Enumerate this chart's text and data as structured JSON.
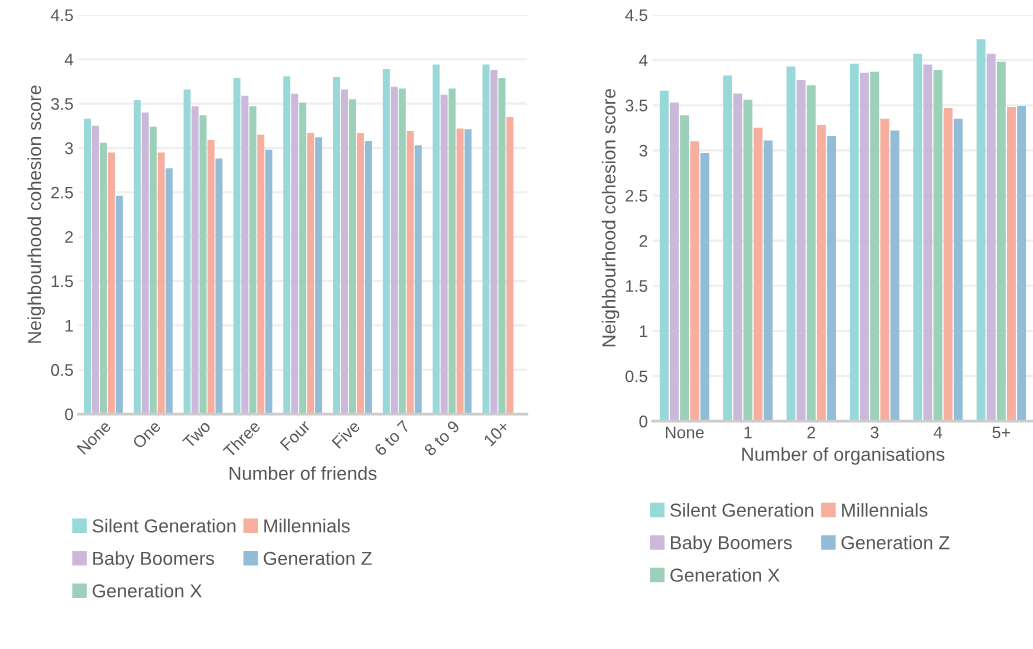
{
  "chart_data": [
    {
      "type": "bar",
      "xlabel": "Number of friends",
      "ylabel": "Neighbourhood cohesion score",
      "categories": [
        "None",
        "One",
        "Two",
        "Three",
        "Four",
        "Five",
        "6 to 7",
        "8 to 9",
        "10+"
      ],
      "ylim": [
        0,
        4.5
      ],
      "yticks": [
        0,
        0.5,
        1,
        1.5,
        2,
        2.5,
        3,
        3.5,
        4,
        4.5
      ],
      "grid": "y",
      "legend": "bottom",
      "series": [
        {
          "name": "Silent Generation",
          "color": "#99d8d8",
          "values": [
            3.33,
            3.54,
            3.66,
            3.79,
            3.81,
            3.8,
            3.89,
            3.94,
            3.94
          ]
        },
        {
          "name": "Baby Boomers",
          "color": "#cbb9dc",
          "values": [
            3.25,
            3.4,
            3.47,
            3.59,
            3.61,
            3.66,
            3.69,
            3.6,
            3.88
          ]
        },
        {
          "name": "Generation X",
          "color": "#9dd0b8",
          "values": [
            3.06,
            3.24,
            3.37,
            3.47,
            3.51,
            3.55,
            3.67,
            3.67,
            3.79
          ]
        },
        {
          "name": "Millennials",
          "color": "#f7ae9f",
          "values": [
            2.95,
            2.95,
            3.09,
            3.15,
            3.17,
            3.17,
            3.19,
            3.22,
            3.35
          ]
        },
        {
          "name": "Generation Z",
          "color": "#93bcd6",
          "values": [
            2.46,
            2.77,
            2.88,
            2.98,
            3.12,
            3.08,
            3.03,
            3.21,
            null
          ]
        }
      ]
    },
    {
      "type": "bar",
      "xlabel": "Number of organisations",
      "ylabel": "Neighbourhood cohesion score",
      "categories": [
        "None",
        "1",
        "2",
        "3",
        "4",
        "5+"
      ],
      "ylim": [
        0,
        4.5
      ],
      "yticks": [
        0,
        0.5,
        1,
        1.5,
        2,
        2.5,
        3,
        3.5,
        4,
        4.5
      ],
      "grid": "y",
      "legend": "bottom",
      "series": [
        {
          "name": "Silent Generation",
          "color": "#99d8d8",
          "values": [
            3.66,
            3.83,
            3.93,
            3.96,
            4.07,
            4.23
          ]
        },
        {
          "name": "Baby Boomers",
          "color": "#cbb9dc",
          "values": [
            3.53,
            3.63,
            3.78,
            3.86,
            3.95,
            4.07
          ]
        },
        {
          "name": "Generation X",
          "color": "#9dd0b8",
          "values": [
            3.39,
            3.56,
            3.72,
            3.87,
            3.89,
            3.98
          ]
        },
        {
          "name": "Millennials",
          "color": "#f7ae9f",
          "values": [
            3.1,
            3.25,
            3.28,
            3.35,
            3.47,
            3.48
          ]
        },
        {
          "name": "Generation Z",
          "color": "#93bcd6",
          "values": [
            2.97,
            3.11,
            3.16,
            3.22,
            3.35,
            3.49
          ]
        }
      ]
    }
  ]
}
